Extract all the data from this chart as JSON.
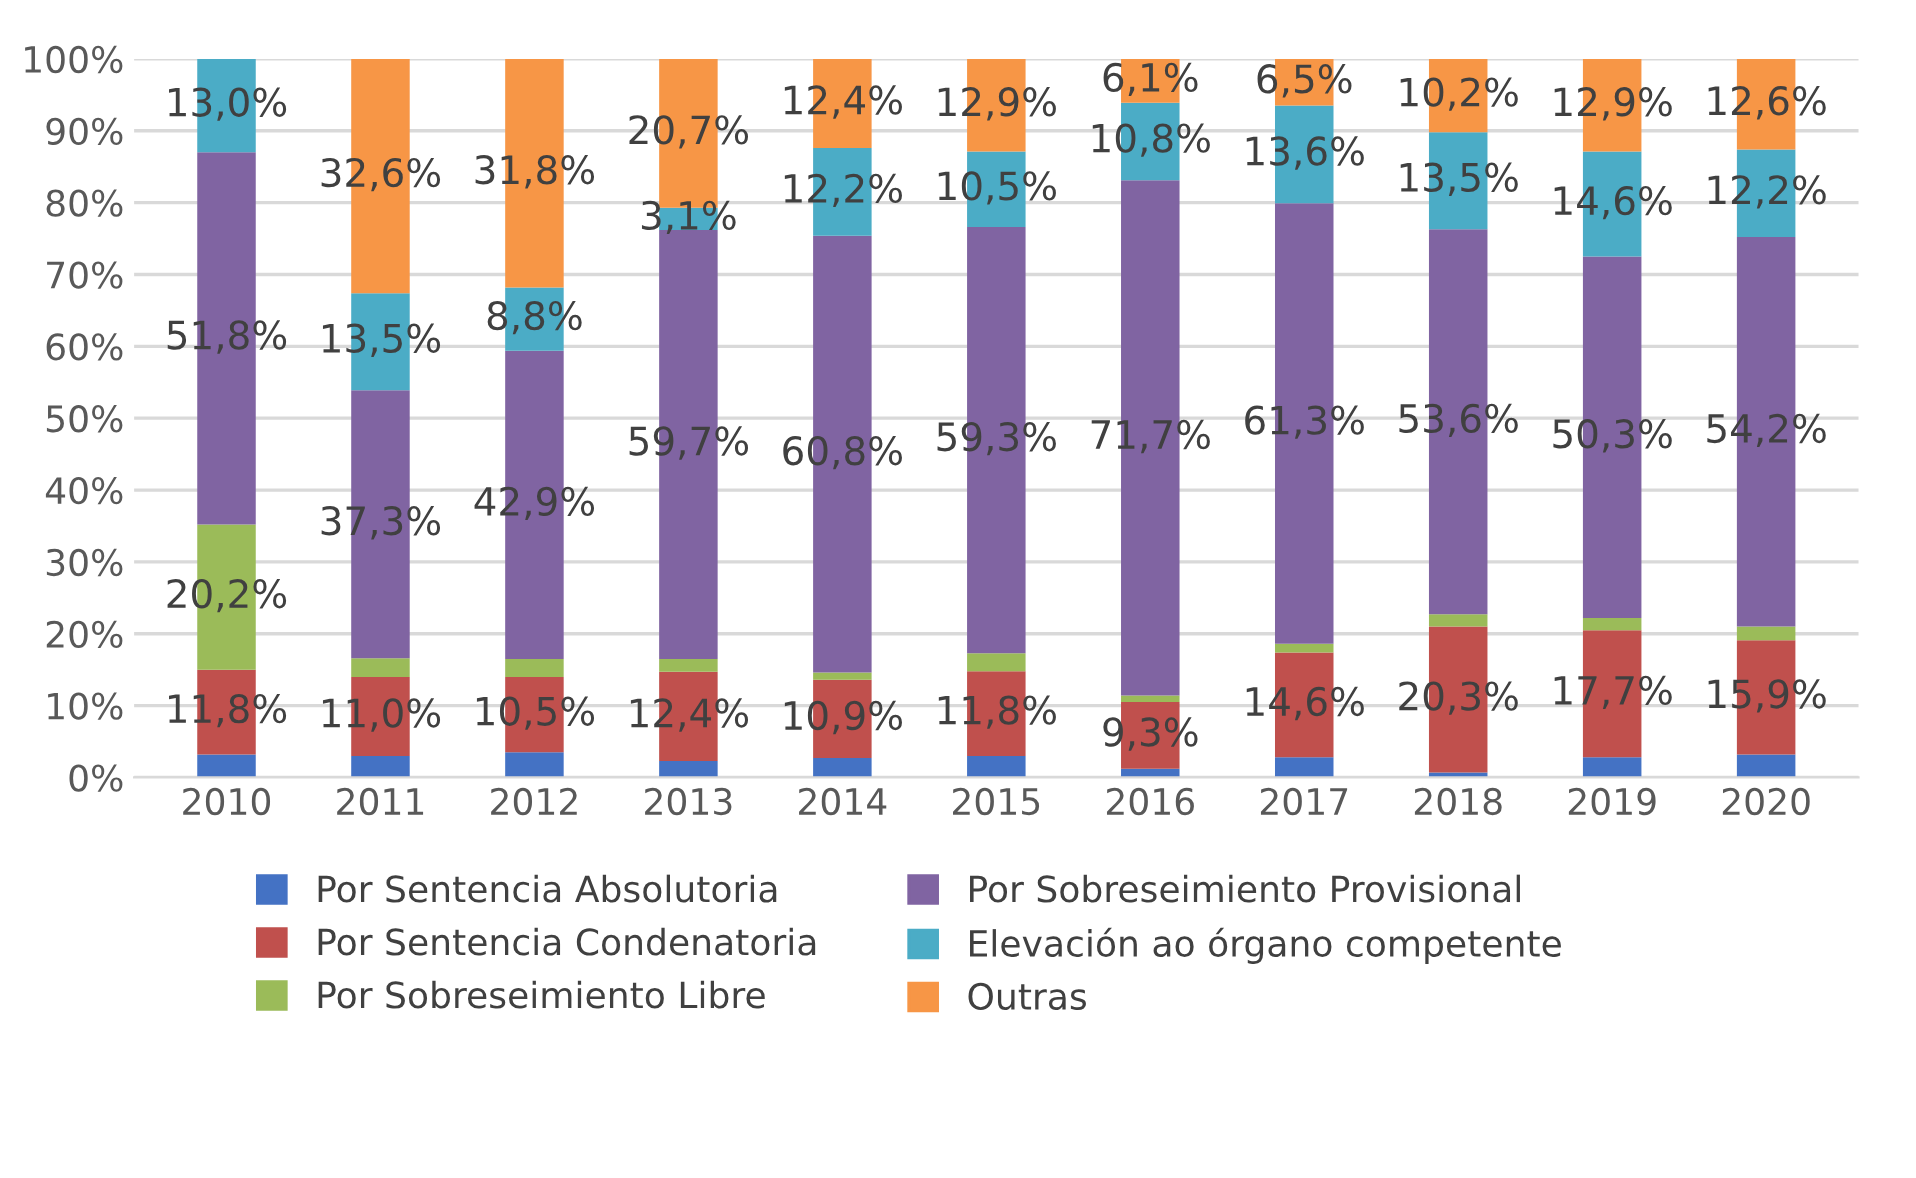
{
  "chart_data": {
    "type": "bar",
    "stacked": true,
    "categories": [
      "2010",
      "2011",
      "2012",
      "2013",
      "2014",
      "2015",
      "2016",
      "2017",
      "2018",
      "2019",
      "2020"
    ],
    "series": [
      {
        "name": "Por Sentencia Absolutoria",
        "color": "#4472c4",
        "values": [
          3.2,
          3.0,
          3.5,
          2.3,
          2.7,
          3.0,
          1.2,
          2.8,
          0.7,
          2.8,
          3.2
        ]
      },
      {
        "name": "Por Sentencia Condenatoria",
        "color": "#c0504d",
        "values": [
          11.8,
          11.0,
          10.5,
          12.4,
          10.9,
          11.8,
          9.3,
          14.6,
          20.3,
          17.7,
          15.9
        ],
        "value_labels": [
          "11,8%",
          "11,0%",
          "10,5%",
          "12,4%",
          "10,9%",
          "11,8%",
          "9,3%",
          "14,6%",
          "20,3%",
          "17,7%",
          "15,9%"
        ]
      },
      {
        "name": "Por Sobreseimiento Libre",
        "color": "#9bbb59",
        "values": [
          20.2,
          2.6,
          2.5,
          1.8,
          1.0,
          2.5,
          0.9,
          1.2,
          1.7,
          1.7,
          1.9
        ],
        "value_labels": [
          "20,2%",
          null,
          null,
          null,
          null,
          null,
          null,
          null,
          null,
          null,
          null
        ]
      },
      {
        "name": "Por Sobreseimiento Provisional",
        "color": "#8064a2",
        "values": [
          51.8,
          37.3,
          42.9,
          59.7,
          60.8,
          59.3,
          71.7,
          61.3,
          53.6,
          50.3,
          54.2
        ],
        "value_labels": [
          "51,8%",
          "37,3%",
          "42,9%",
          "59,7%",
          "60,8%",
          "59,3%",
          "71,7%",
          "61,3%",
          "53,6%",
          "50,3%",
          "54,2%"
        ]
      },
      {
        "name": "Elevación ao órgano competente",
        "color": "#4bacc6",
        "values": [
          13.0,
          13.5,
          8.8,
          3.1,
          12.2,
          10.5,
          10.8,
          13.6,
          13.5,
          14.6,
          12.2
        ],
        "value_labels": [
          "13,0%",
          "13,5%",
          "8,8%",
          "3,1%",
          "12,2%",
          "10,5%",
          "10,8%",
          "13,6%",
          "13,5%",
          "14,6%",
          "12,2%"
        ]
      },
      {
        "name": "Outras",
        "color": "#f79646",
        "values": [
          0,
          32.6,
          31.8,
          20.7,
          12.4,
          12.9,
          6.1,
          6.5,
          10.2,
          12.9,
          12.6
        ],
        "value_labels": [
          null,
          "32,6%",
          "31,8%",
          "20,7%",
          "12,4%",
          "12,9%",
          "6,1%",
          "6,5%",
          "10,2%",
          "12,9%",
          "12,6%"
        ]
      }
    ],
    "ylim": [
      0,
      100
    ],
    "yticks": [
      {
        "value": 0,
        "label": "0%"
      },
      {
        "value": 10,
        "label": "10%"
      },
      {
        "value": 20,
        "label": "20%"
      },
      {
        "value": 30,
        "label": "30%"
      },
      {
        "value": 40,
        "label": "40%"
      },
      {
        "value": 50,
        "label": "50%"
      },
      {
        "value": 60,
        "label": "60%"
      },
      {
        "value": 70,
        "label": "70%"
      },
      {
        "value": 80,
        "label": "80%"
      },
      {
        "value": 90,
        "label": "90%"
      },
      {
        "value": 100,
        "label": "100%"
      }
    ],
    "grid": "y",
    "legend": "bottom"
  }
}
